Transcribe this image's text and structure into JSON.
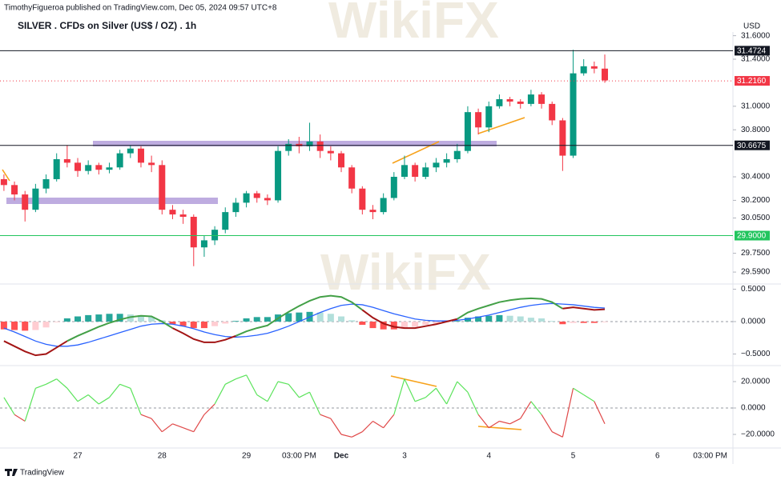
{
  "header": {
    "publisher": "TimothyFigueroa published on TradingView.com, Dec 05, 2024 09:57 UTC+8",
    "watermark": "WikiFX",
    "footer": "TradingView"
  },
  "chart_data": [
    {
      "type": "candlestick",
      "title": "SILVER . CFDs on Silver (US$ / OZ) . 1h",
      "y_unit": "USD",
      "up_color": "#089981",
      "down_color": "#f23645",
      "categories": [
        null,
        null,
        null,
        null,
        null,
        null,
        null,
        "27",
        null,
        null,
        null,
        null,
        null,
        null,
        null,
        "28",
        null,
        null,
        null,
        null,
        null,
        null,
        null,
        "29",
        null,
        null,
        null,
        null,
        "03:00 PM",
        null,
        null,
        null,
        "Dec",
        null,
        null,
        null,
        null,
        null,
        "3",
        null,
        null,
        null,
        null,
        null,
        null,
        null,
        "4",
        null,
        null,
        null,
        null,
        null,
        null,
        null,
        "5",
        null,
        null,
        null,
        null,
        null,
        null,
        null,
        "6",
        null,
        null,
        null,
        null,
        "03:00 PM"
      ],
      "open": [
        30.38,
        30.33,
        30.25,
        30.12,
        30.3,
        30.38,
        30.55,
        30.52,
        30.45,
        30.5,
        30.46,
        30.48,
        30.6,
        30.64,
        30.52,
        30.5,
        30.12,
        30.08,
        30.06,
        29.8,
        29.86,
        29.95,
        30.1,
        30.18,
        30.26,
        30.22,
        30.2,
        30.62,
        30.68,
        30.66,
        30.7,
        30.62,
        30.6,
        30.48,
        30.3,
        30.12,
        30.1,
        30.22,
        30.4,
        30.5,
        30.4,
        30.48,
        30.52,
        30.55,
        30.62,
        30.95,
        30.82,
        31.0,
        31.06,
        31.04,
        31.02,
        31.1,
        31.02,
        30.88,
        30.58,
        31.28,
        31.34,
        31.32,
        null,
        null,
        null,
        null,
        null,
        null,
        null,
        null,
        null,
        null
      ],
      "high": [
        30.42,
        30.36,
        30.28,
        30.34,
        30.42,
        30.6,
        30.67,
        30.56,
        30.54,
        30.52,
        30.52,
        30.63,
        30.67,
        30.66,
        30.58,
        30.54,
        30.16,
        30.12,
        30.08,
        29.9,
        29.98,
        30.14,
        30.22,
        30.28,
        30.28,
        30.25,
        30.66,
        30.72,
        30.74,
        30.86,
        30.76,
        30.66,
        30.62,
        30.5,
        30.32,
        30.16,
        30.26,
        30.44,
        30.58,
        30.52,
        30.52,
        30.56,
        30.6,
        30.68,
        31.0,
        30.98,
        31.04,
        31.1,
        31.08,
        31.06,
        31.14,
        31.12,
        31.04,
        30.9,
        31.48,
        31.4,
        31.38,
        31.44,
        null,
        null,
        null,
        null,
        null,
        null,
        null,
        null,
        null,
        null
      ],
      "low": [
        30.28,
        30.2,
        30.02,
        30.1,
        30.26,
        30.36,
        30.48,
        30.4,
        30.42,
        30.42,
        30.43,
        30.46,
        30.56,
        30.48,
        30.44,
        30.08,
        30.04,
        30.0,
        29.64,
        29.72,
        29.82,
        29.92,
        30.06,
        30.14,
        30.18,
        30.16,
        30.18,
        30.58,
        30.6,
        30.62,
        30.56,
        30.54,
        30.44,
        30.26,
        30.08,
        30.04,
        30.08,
        30.2,
        30.38,
        30.36,
        30.38,
        30.44,
        30.48,
        30.52,
        30.6,
        30.76,
        30.78,
        30.98,
        31.0,
        30.98,
        31.0,
        30.98,
        30.84,
        30.45,
        30.56,
        31.26,
        31.28,
        31.2,
        null,
        null,
        null,
        null,
        null,
        null,
        null,
        null,
        null,
        null
      ],
      "close": [
        30.33,
        30.25,
        30.12,
        30.3,
        30.38,
        30.55,
        30.52,
        30.45,
        30.5,
        30.46,
        30.48,
        30.6,
        30.64,
        30.52,
        30.5,
        30.12,
        30.08,
        30.06,
        29.8,
        29.86,
        29.95,
        30.1,
        30.18,
        30.26,
        30.22,
        30.2,
        30.62,
        30.68,
        30.66,
        30.7,
        30.62,
        30.6,
        30.48,
        30.3,
        30.12,
        30.1,
        30.22,
        30.4,
        30.5,
        30.4,
        30.48,
        30.52,
        30.55,
        30.62,
        30.95,
        30.82,
        31.0,
        31.06,
        31.04,
        31.02,
        31.1,
        31.02,
        30.88,
        30.58,
        31.28,
        31.34,
        31.32,
        31.22,
        null,
        null,
        null,
        null,
        null,
        null,
        null,
        null,
        null,
        null
      ],
      "ylim": [
        29.509,
        31.645
      ],
      "yticks": [
        {
          "value": 31.6,
          "label": "31.6000"
        },
        {
          "value": 31.4,
          "label": "31.4000"
        },
        {
          "value": 31.0,
          "label": "31.0000"
        },
        {
          "value": 30.8,
          "label": "30.8000"
        },
        {
          "value": 30.4,
          "label": "30.4000"
        },
        {
          "value": 30.2,
          "label": "30.2000"
        },
        {
          "value": 30.05,
          "label": "30.0500"
        },
        {
          "value": 29.75,
          "label": "29.7500"
        },
        {
          "value": 29.59,
          "label": "29.5900"
        }
      ],
      "price_lines": [
        {
          "value": 31.4724,
          "label": "31.4724",
          "color": "#131722",
          "style": "solid"
        },
        {
          "value": 31.216,
          "label": "31.2160",
          "color": "#f23645",
          "style": "dotted"
        },
        {
          "value": 30.6675,
          "label": "30.6675",
          "color": "#131722",
          "style": "solid"
        },
        {
          "value": 29.9,
          "label": "29.9000",
          "color": "#22c55e",
          "style": "solid"
        }
      ]
    },
    {
      "type": "macd",
      "ylim": [
        -0.654,
        0.543
      ],
      "yticks": [
        {
          "value": 0.5,
          "label": "0.5000"
        },
        {
          "value": 0,
          "label": "0.0000"
        },
        {
          "value": -0.5,
          "label": "−0.5000"
        }
      ],
      "macd_up_color": "#43a047",
      "macd_down_color": "#a31515",
      "signal_color": "#2962ff",
      "hist_colors": [
        "#26a69a",
        "#b2dfdb",
        "#ff5252",
        "#ffcdd2"
      ],
      "macd": [
        -0.3,
        -0.38,
        -0.46,
        -0.52,
        -0.5,
        -0.4,
        -0.3,
        -0.22,
        -0.15,
        -0.08,
        -0.02,
        0.03,
        0.07,
        0.09,
        0.08,
        0.0,
        -0.1,
        -0.18,
        -0.27,
        -0.32,
        -0.32,
        -0.28,
        -0.22,
        -0.15,
        -0.1,
        -0.06,
        0.05,
        0.15,
        0.24,
        0.32,
        0.38,
        0.4,
        0.38,
        0.3,
        0.18,
        0.06,
        -0.03,
        -0.08,
        -0.1,
        -0.1,
        -0.07,
        -0.04,
        0.0,
        0.04,
        0.14,
        0.2,
        0.25,
        0.3,
        0.33,
        0.35,
        0.36,
        0.35,
        0.3,
        0.2,
        0.22,
        0.2,
        0.18,
        0.19
      ],
      "signal": [
        -0.1,
        -0.16,
        -0.23,
        -0.3,
        -0.35,
        -0.38,
        -0.38,
        -0.36,
        -0.32,
        -0.27,
        -0.22,
        -0.17,
        -0.12,
        -0.07,
        -0.04,
        -0.03,
        -0.04,
        -0.07,
        -0.11,
        -0.16,
        -0.2,
        -0.23,
        -0.24,
        -0.23,
        -0.21,
        -0.18,
        -0.13,
        -0.07,
        0.0,
        0.07,
        0.14,
        0.2,
        0.25,
        0.27,
        0.26,
        0.22,
        0.17,
        0.12,
        0.08,
        0.04,
        0.02,
        0.01,
        0.01,
        0.02,
        0.04,
        0.07,
        0.1,
        0.14,
        0.18,
        0.22,
        0.25,
        0.27,
        0.28,
        0.27,
        0.26,
        0.24,
        0.22,
        0.21
      ],
      "histogram": [
        -0.12,
        -0.13,
        -0.14,
        -0.13,
        -0.09,
        -0.01,
        0.05,
        0.08,
        0.1,
        0.11,
        0.12,
        0.12,
        0.11,
        0.1,
        0.07,
        0.02,
        -0.04,
        -0.07,
        -0.1,
        -0.1,
        -0.07,
        -0.03,
        0.01,
        0.05,
        0.07,
        0.07,
        0.11,
        0.13,
        0.14,
        0.15,
        0.14,
        0.12,
        0.08,
        0.02,
        -0.05,
        -0.1,
        -0.12,
        -0.12,
        -0.11,
        -0.08,
        -0.05,
        -0.03,
        -0.01,
        0.01,
        0.06,
        0.08,
        0.09,
        0.1,
        0.09,
        0.08,
        0.06,
        0.05,
        0.01,
        -0.04,
        -0.02,
        -0.02,
        -0.02,
        -0.01
      ]
    },
    {
      "type": "line",
      "ylim": [
        -29.1,
        29.1
      ],
      "yticks": [
        {
          "value": 20,
          "label": "20.0000"
        },
        {
          "value": 0,
          "label": "0.0000"
        },
        {
          "value": -20,
          "label": "−20.0000"
        }
      ],
      "up_color": "#5be35b",
      "down_color": "#e04848",
      "values": [
        8,
        -5,
        -10,
        15,
        18,
        22,
        15,
        5,
        10,
        3,
        8,
        18,
        15,
        -5,
        -8,
        -18,
        -12,
        -15,
        -18,
        -5,
        3,
        18,
        22,
        25,
        10,
        5,
        20,
        18,
        8,
        12,
        -5,
        -8,
        -20,
        -22,
        -18,
        -10,
        -15,
        -5,
        22,
        5,
        8,
        15,
        3,
        20,
        12,
        -5,
        -15,
        -10,
        -12,
        -8,
        5,
        -5,
        -18,
        -22,
        15,
        10,
        5,
        -12
      ]
    }
  ]
}
